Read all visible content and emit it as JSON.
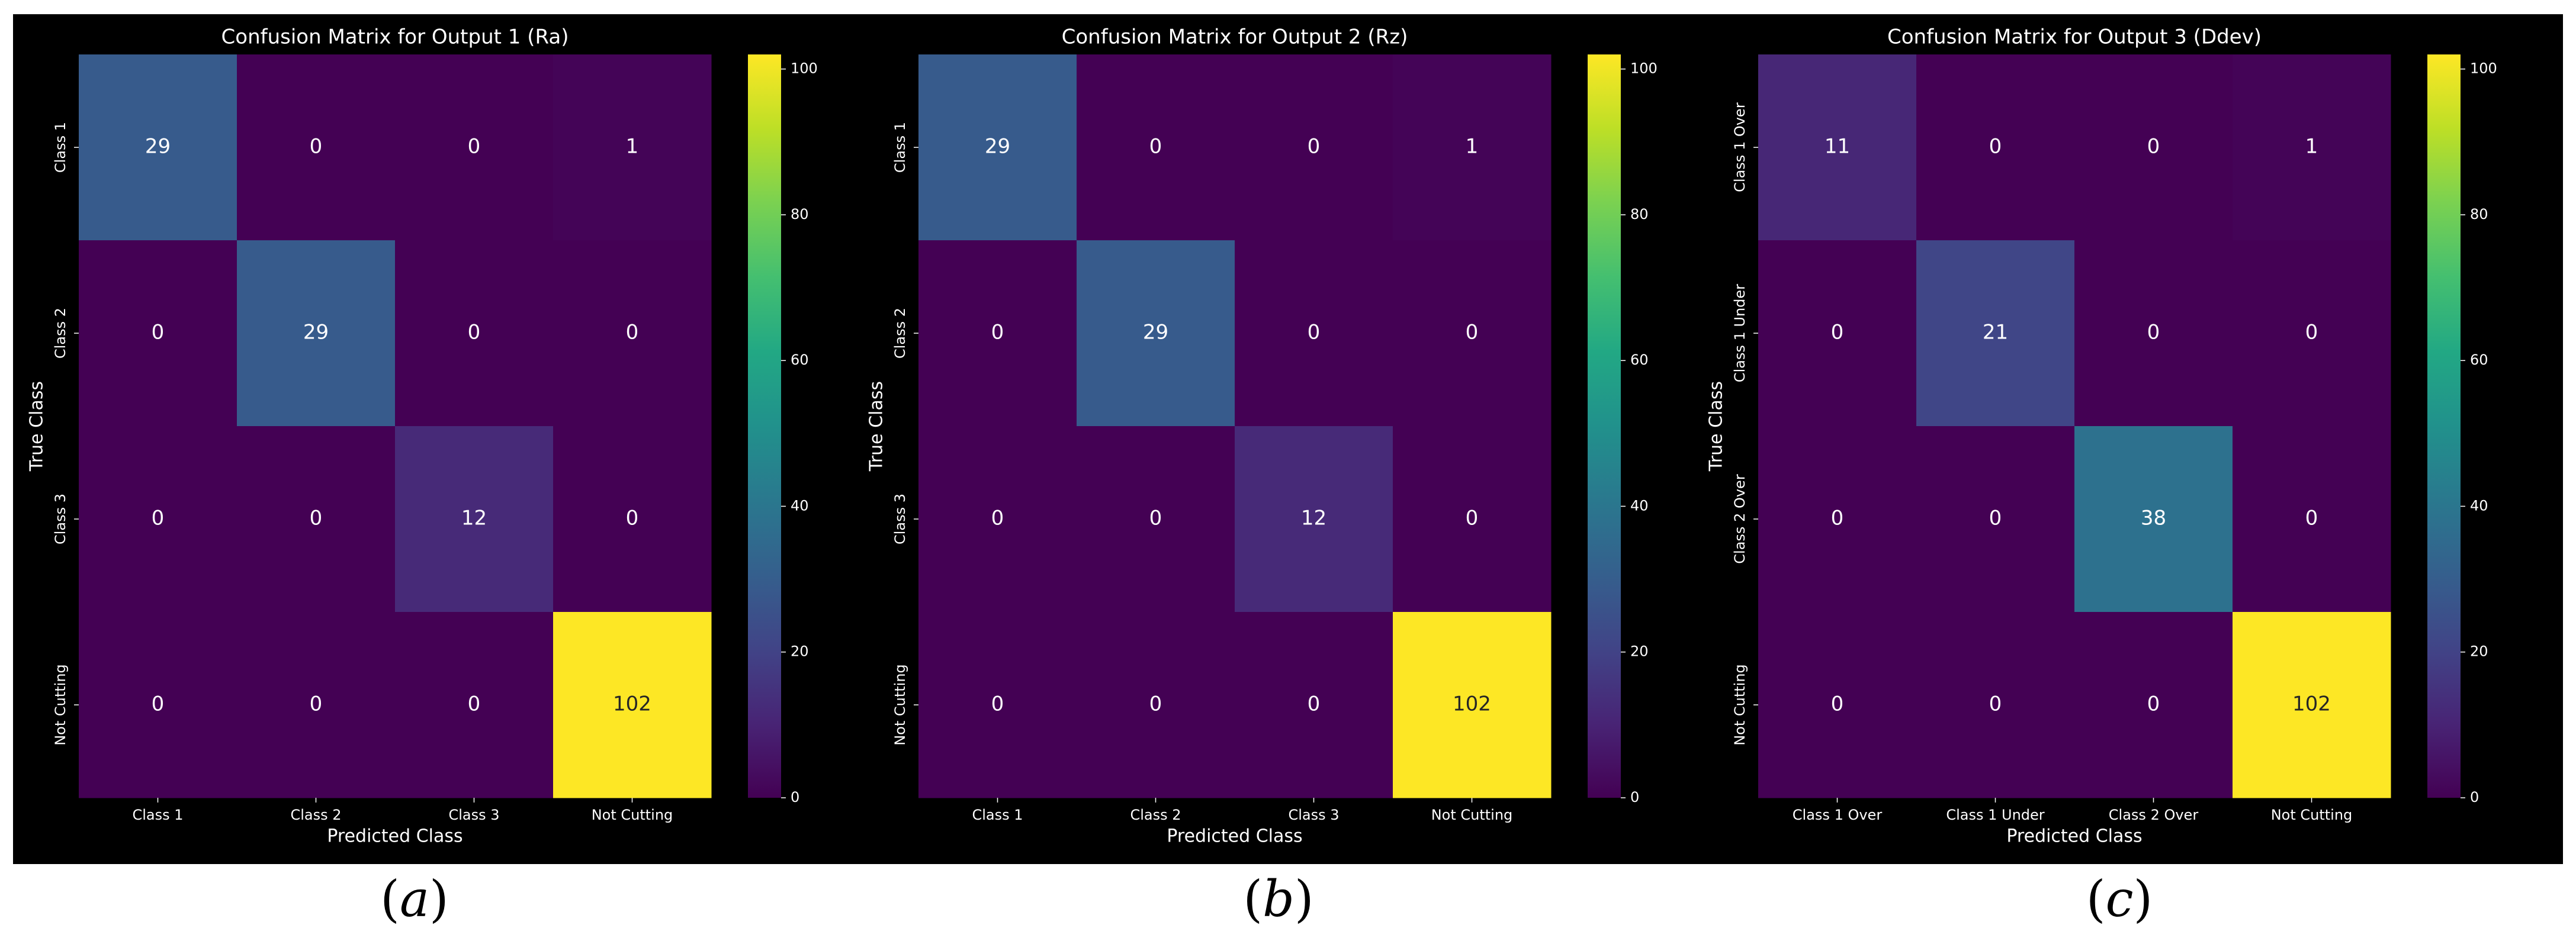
{
  "chart_data": [
    {
      "type": "heatmap",
      "title": "Confusion Matrix for Output 1 (Ra)",
      "xlabel": "Predicted Class",
      "ylabel": "True Class",
      "x_categories": [
        "Class 1",
        "Class 2",
        "Class 3",
        "Not Cutting"
      ],
      "y_categories": [
        "Class 1",
        "Class 2",
        "Class 3",
        "Not Cutting"
      ],
      "values": [
        [
          29,
          0,
          0,
          1
        ],
        [
          0,
          29,
          0,
          0
        ],
        [
          0,
          0,
          12,
          0
        ],
        [
          0,
          0,
          0,
          102
        ]
      ],
      "colorbar": {
        "min": 0,
        "max": 102,
        "ticks": [
          0,
          20,
          40,
          60,
          80,
          100
        ],
        "colormap": "viridis"
      },
      "grid": false
    },
    {
      "type": "heatmap",
      "title": "Confusion Matrix for Output 2 (Rz)",
      "xlabel": "Predicted Class",
      "ylabel": "True Class",
      "x_categories": [
        "Class 1",
        "Class 2",
        "Class 3",
        "Not Cutting"
      ],
      "y_categories": [
        "Class 1",
        "Class 2",
        "Class 3",
        "Not Cutting"
      ],
      "values": [
        [
          29,
          0,
          0,
          1
        ],
        [
          0,
          29,
          0,
          0
        ],
        [
          0,
          0,
          12,
          0
        ],
        [
          0,
          0,
          0,
          102
        ]
      ],
      "colorbar": {
        "min": 0,
        "max": 102,
        "ticks": [
          0,
          20,
          40,
          60,
          80,
          100
        ],
        "colormap": "viridis"
      },
      "grid": false
    },
    {
      "type": "heatmap",
      "title": "Confusion Matrix for Output 3 (Ddev)",
      "xlabel": "Predicted Class",
      "ylabel": "True Class",
      "x_categories": [
        "Class 1 Over",
        "Class 1 Under",
        "Class 2 Over",
        "Not Cutting"
      ],
      "y_categories": [
        "Class 1 Over",
        "Class 1 Under",
        "Class 2 Over",
        "Not Cutting"
      ],
      "values": [
        [
          11,
          0,
          0,
          1
        ],
        [
          0,
          21,
          0,
          0
        ],
        [
          0,
          0,
          38,
          0
        ],
        [
          0,
          0,
          0,
          102
        ]
      ],
      "colorbar": {
        "min": 0,
        "max": 102,
        "ticks": [
          0,
          20,
          40,
          60,
          80,
          100
        ],
        "colormap": "viridis"
      },
      "grid": false
    }
  ],
  "captions": [
    {
      "open": "(",
      "letter": "a",
      "close": ")"
    },
    {
      "open": "(",
      "letter": "b",
      "close": ")"
    },
    {
      "open": "(",
      "letter": "c",
      "close": ")"
    }
  ],
  "colors": {
    "background": "#000000",
    "text": "#ffffff",
    "annotation_light": "#ffffff",
    "annotation_dark": "#262626"
  }
}
